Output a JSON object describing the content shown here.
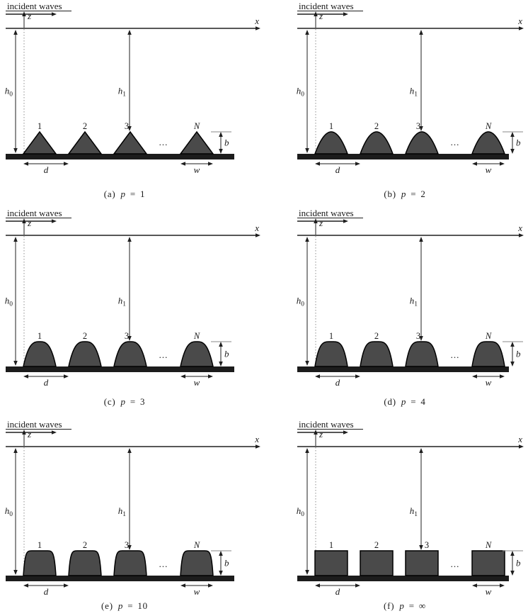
{
  "figure": {
    "incident_label": "incident waves",
    "axis": {
      "x": "x",
      "z": "z"
    },
    "depth_far": {
      "base": "h",
      "sub": "0"
    },
    "depth_local": {
      "base": "h",
      "sub": "1"
    },
    "dims": {
      "height": "b",
      "spacing": "d",
      "width": "w"
    },
    "bump_numbers": [
      "1",
      "2",
      "3"
    ],
    "bump_last": "N",
    "ellipsis": "...",
    "p_symbol": "p",
    "equals": "=",
    "panels": [
      {
        "id": "a",
        "index": "(a)",
        "p_display": "1",
        "p_value": 1
      },
      {
        "id": "b",
        "index": "(b)",
        "p_display": "2",
        "p_value": 2
      },
      {
        "id": "c",
        "index": "(c)",
        "p_display": "3",
        "p_value": 3
      },
      {
        "id": "d",
        "index": "(d)",
        "p_display": "4",
        "p_value": 4
      },
      {
        "id": "e",
        "index": "(e)",
        "p_display": "10",
        "p_value": 10
      },
      {
        "id": "f",
        "index": "(f)",
        "p_display": "∞",
        "p_value": null
      }
    ],
    "colors": {
      "background": "#ffffff",
      "ink": "#1f1f1f",
      "axis_line": "#3f3f3f",
      "bump_fill": "#4a4a4a",
      "bump_outline": "#000000",
      "seabed_bar": "#1c1c1c",
      "dotted_line": "#8f8f8f",
      "tick_line": "#8a8a8a"
    }
  }
}
